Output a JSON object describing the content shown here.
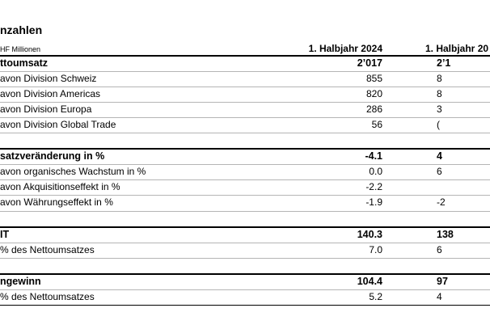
{
  "section_title": "nzahlen",
  "unit_label": "HF Millionen",
  "columns": [
    "1. Halbjahr 2024",
    "1. Halbjahr 20"
  ],
  "rows": [
    {
      "label": "ttoumsatz",
      "v1": "2’017",
      "v2": "2’1"
    },
    {
      "label": "avon Division Schweiz",
      "v1": "855",
      "v2": "8"
    },
    {
      "label": "avon Division Americas",
      "v1": "820",
      "v2": "8"
    },
    {
      "label": "avon Division Europa",
      "v1": "286",
      "v2": "3"
    },
    {
      "label": "avon Division Global Trade",
      "v1": "56",
      "v2": "("
    },
    {
      "label": "satzveränderung in %",
      "v1": "-4.1",
      "v2": "4"
    },
    {
      "label": "avon organisches Wachstum in %",
      "v1": "0.0",
      "v2": "6"
    },
    {
      "label": "avon Akquisitionseffekt in %",
      "v1": "-2.2",
      "v2": ""
    },
    {
      "label": "avon Währungseffekt in %",
      "v1": "-1.9",
      "v2": "-2"
    },
    {
      "label": "IT",
      "v1": "140.3",
      "v2": "138"
    },
    {
      "label": "% des Nettoumsatzes",
      "v1": "7.0",
      "v2": "6"
    },
    {
      "label": "ngewinn",
      "v1": "104.4",
      "v2": "97"
    },
    {
      "label": "% des Nettoumsatzes",
      "v1": "5.2",
      "v2": "4"
    }
  ]
}
